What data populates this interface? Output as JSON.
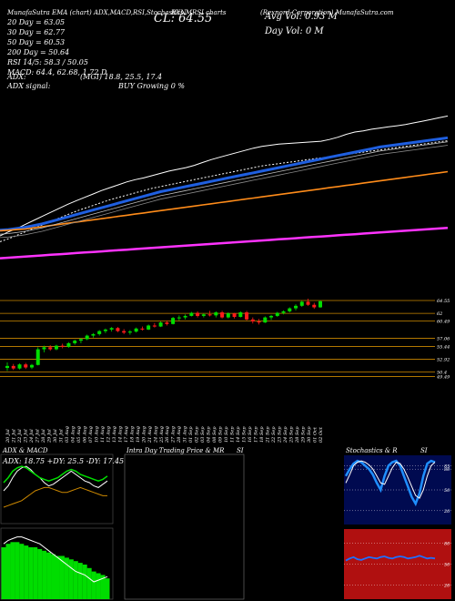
{
  "header": {
    "left_title": "MunafaSutra EMA (chart) ADX,MACD,RSI,Stochastics,MRSI charts",
    "stock_code": "RXN",
    "company": "(Rexnord Corporation) MunafaSutra.com",
    "close_label": "CL: 64.55",
    "avg_vol": "Avg Vol: 0.93 M",
    "day_vol": "Day Vol: 0  M"
  },
  "stats": [
    {
      "key": "20 Day",
      "label": "20  Day = 63.05"
    },
    {
      "key": "30 Day",
      "label": "30  Day = 62.77"
    },
    {
      "key": "50 Day",
      "label": "50  Day = 60.53"
    },
    {
      "key": "200 Day",
      "label": "200  Day = 50.64"
    },
    {
      "key": "RSI",
      "label": "RSI 14/5: 58.3 / 50.05"
    },
    {
      "key": "MACD",
      "label": "MACD: 64.4, 62.68, 1.72  D"
    }
  ],
  "adx_line": {
    "left": "ADX:",
    "mid": "(MGI) 18.8, 25.5, 17.4"
  },
  "adx_signal": {
    "left": "ADX  signal:",
    "mid": "BUY Growing 0 %"
  },
  "panels": {
    "adx_title": "ADX  & MACD",
    "adx_readout": "ADX: 18.75  +DY: 25.5  -DY: 17.45",
    "intraday_title": "Intra  Day Trading Price  & MR",
    "intraday_title2": "SI",
    "stoch_title": "Stochastics & R",
    "stoch_title2": "SI"
  },
  "colors": {
    "background": "#000000",
    "up_candle": "#00dd00",
    "down_candle": "#ff1a1a",
    "ema20": "#ffffff",
    "ema50": "#1f5fe0",
    "ema200": "#ff8c1a",
    "ema_long": "#ff33ff",
    "grid": "#cc8800",
    "stoch_bg": "#000a50",
    "rsi_bg": "#b01010"
  },
  "chart_data": [
    {
      "type": "line",
      "name": "Price & EMA",
      "x": [
        "20 Jul",
        "21 Jul",
        "22 Jul",
        "23 Jul",
        "24 Jul",
        "27 Jul",
        "28 Jul",
        "29 Jul",
        "30 Jul",
        "31 Jul",
        "03 Aug",
        "04 Aug",
        "05 Aug",
        "06 Aug",
        "07 Aug",
        "10 Aug",
        "11 Aug",
        "12 Aug",
        "13 Aug",
        "14 Aug",
        "17 Aug",
        "18 Aug",
        "19 Aug",
        "20 Aug",
        "21 Aug",
        "24 Aug",
        "25 Aug",
        "26 Aug",
        "27 Aug",
        "28 Aug",
        "31 Aug",
        "01 Sep",
        "02 Sep",
        "03 Sep",
        "04 Sep",
        "08 Sep",
        "09 Sep",
        "10 Sep",
        "11 Sep",
        "14 Sep",
        "15 Sep",
        "16 Sep",
        "17 Sep",
        "18 Sep",
        "21 Sep",
        "22 Sep",
        "23 Sep",
        "24 Sep",
        "25 Sep",
        "28 Sep",
        "29 Sep",
        "30 Sep",
        "01 Oct",
        "02 Oct"
      ],
      "series": [
        {
          "key": "price",
          "values": [
            43.5,
            44.2,
            44.8,
            45.5,
            46.2,
            46.9,
            47.6,
            48.3,
            49.0,
            49.6,
            50.2,
            50.8,
            51.4,
            51.9,
            52.4,
            52.9,
            53.3,
            53.6,
            54.0,
            54.4,
            54.8,
            55.1,
            55.4,
            55.8,
            56.3,
            56.8,
            57.2,
            57.6,
            58.0,
            58.4,
            58.8,
            59.1,
            59.3,
            59.5,
            59.6,
            59.7,
            59.8,
            59.9,
            60.0,
            60.3,
            60.7,
            61.2,
            61.6,
            61.8,
            62.1,
            62.3,
            62.5,
            62.7,
            62.9,
            63.2,
            63.5,
            63.8,
            64.1,
            64.4
          ]
        },
        {
          "key": "ema20",
          "values": [
            42.5,
            43.0,
            43.6,
            44.2,
            44.8,
            45.4,
            46.0,
            46.6,
            47.2,
            47.8,
            48.3,
            48.8,
            49.3,
            49.8,
            50.2,
            50.6,
            51.0,
            51.4,
            51.8,
            52.1,
            52.4,
            52.7,
            53.0,
            53.3,
            53.6,
            53.9,
            54.2,
            54.5,
            54.8,
            55.1,
            55.4,
            55.7,
            55.9,
            56.1,
            56.3,
            56.5,
            56.7,
            56.9,
            57.1,
            57.3,
            57.5,
            57.7,
            57.9,
            58.1,
            58.3,
            58.5,
            58.7,
            58.9,
            59.1,
            59.3,
            59.5,
            59.7,
            59.9,
            60.1
          ]
        },
        {
          "key": "ema50",
          "values": [
            44.5,
            44.6,
            44.8,
            45.0,
            45.3,
            45.6,
            46.0,
            46.4,
            46.8,
            47.2,
            47.6,
            48.0,
            48.4,
            48.8,
            49.2,
            49.6,
            50.0,
            50.4,
            50.8,
            51.2,
            51.5,
            51.8,
            52.1,
            52.4,
            52.7,
            53.0,
            53.3,
            53.6,
            53.9,
            54.2,
            54.5,
            54.8,
            55.1,
            55.4,
            55.7,
            56.0,
            56.3,
            56.6,
            56.9,
            57.2,
            57.5,
            57.8,
            58.1,
            58.4,
            58.7,
            59.0,
            59.2,
            59.4,
            59.6,
            59.8,
            60.0,
            60.2,
            60.4,
            60.6
          ]
        },
        {
          "key": "ema200",
          "values": [
            44.4,
            44.5,
            44.6,
            44.7,
            44.9,
            45.1,
            45.3,
            45.5,
            45.7,
            45.9,
            46.1,
            46.3,
            46.5,
            46.7,
            46.9,
            47.1,
            47.3,
            47.5,
            47.7,
            47.9,
            48.1,
            48.3,
            48.5,
            48.7,
            48.9,
            49.1,
            49.3,
            49.5,
            49.7,
            49.9,
            50.1,
            50.3,
            50.5,
            50.7,
            50.9,
            51.1,
            51.3,
            51.5,
            51.7,
            51.9,
            52.1,
            52.3,
            52.5,
            52.7,
            52.9,
            53.1,
            53.3,
            53.5,
            53.7,
            53.9,
            54.1,
            54.3,
            54.5,
            54.7
          ]
        },
        {
          "key": "ema_long",
          "values": [
            39.6,
            39.7,
            39.8,
            39.9,
            40.0,
            40.1,
            40.2,
            40.3,
            40.4,
            40.5,
            40.6,
            40.7,
            40.8,
            40.9,
            41.0,
            41.1,
            41.2,
            41.3,
            41.4,
            41.5,
            41.6,
            41.7,
            41.8,
            41.9,
            42.0,
            42.1,
            42.2,
            42.3,
            42.4,
            42.5,
            42.6,
            42.7,
            42.8,
            42.9,
            43.0,
            43.1,
            43.2,
            43.3,
            43.4,
            43.5,
            43.6,
            43.7,
            43.8,
            43.9,
            44.0,
            44.1,
            44.2,
            44.3,
            44.4,
            44.5,
            44.6,
            44.7,
            44.8,
            44.9
          ]
        }
      ]
    },
    {
      "type": "candlestick",
      "name": "Daily candles",
      "y_ticks": [
        64.55,
        62,
        60.49,
        57.06,
        55.44,
        52.92,
        50.4,
        49.49
      ],
      "candles": [
        {
          "o": 51.2,
          "h": 52.3,
          "l": 50.6,
          "c": 51.6
        },
        {
          "o": 51.6,
          "h": 52.0,
          "l": 50.8,
          "c": 51.1
        },
        {
          "o": 51.1,
          "h": 52.1,
          "l": 50.9,
          "c": 51.9
        },
        {
          "o": 51.9,
          "h": 52.2,
          "l": 51.0,
          "c": 51.3
        },
        {
          "o": 51.3,
          "h": 52.0,
          "l": 51.0,
          "c": 51.8
        },
        {
          "o": 51.8,
          "h": 55.3,
          "l": 51.7,
          "c": 54.9
        },
        {
          "o": 54.9,
          "h": 55.6,
          "l": 54.3,
          "c": 55.3
        },
        {
          "o": 55.3,
          "h": 55.7,
          "l": 54.6,
          "c": 54.9
        },
        {
          "o": 54.9,
          "h": 55.8,
          "l": 54.7,
          "c": 55.6
        },
        {
          "o": 55.6,
          "h": 56.0,
          "l": 55.1,
          "c": 55.4
        },
        {
          "o": 55.4,
          "h": 56.3,
          "l": 55.2,
          "c": 56.1
        },
        {
          "o": 56.1,
          "h": 56.8,
          "l": 55.8,
          "c": 56.6
        },
        {
          "o": 56.6,
          "h": 57.1,
          "l": 56.1,
          "c": 56.9
        },
        {
          "o": 56.9,
          "h": 57.8,
          "l": 56.7,
          "c": 57.6
        },
        {
          "o": 57.6,
          "h": 58.1,
          "l": 57.2,
          "c": 57.9
        },
        {
          "o": 57.9,
          "h": 58.7,
          "l": 57.6,
          "c": 58.5
        },
        {
          "o": 58.5,
          "h": 59.0,
          "l": 58.1,
          "c": 58.8
        },
        {
          "o": 58.8,
          "h": 59.3,
          "l": 58.4,
          "c": 59.1
        },
        {
          "o": 59.1,
          "h": 59.3,
          "l": 58.3,
          "c": 58.5
        },
        {
          "o": 58.5,
          "h": 58.9,
          "l": 57.9,
          "c": 58.2
        },
        {
          "o": 58.2,
          "h": 58.7,
          "l": 57.8,
          "c": 58.4
        },
        {
          "o": 58.4,
          "h": 59.2,
          "l": 58.2,
          "c": 59.0
        },
        {
          "o": 59.0,
          "h": 59.4,
          "l": 58.6,
          "c": 58.8
        },
        {
          "o": 58.8,
          "h": 59.8,
          "l": 58.7,
          "c": 59.6
        },
        {
          "o": 59.6,
          "h": 60.1,
          "l": 59.2,
          "c": 59.4
        },
        {
          "o": 59.4,
          "h": 60.4,
          "l": 59.3,
          "c": 60.2
        },
        {
          "o": 60.2,
          "h": 60.6,
          "l": 59.6,
          "c": 59.9
        },
        {
          "o": 59.9,
          "h": 61.3,
          "l": 59.8,
          "c": 61.1
        },
        {
          "o": 61.1,
          "h": 61.6,
          "l": 60.6,
          "c": 61.2
        },
        {
          "o": 61.2,
          "h": 61.8,
          "l": 60.8,
          "c": 61.5
        },
        {
          "o": 61.5,
          "h": 62.3,
          "l": 61.4,
          "c": 62.1
        },
        {
          "o": 62.1,
          "h": 62.4,
          "l": 61.2,
          "c": 61.5
        },
        {
          "o": 61.5,
          "h": 62.0,
          "l": 61.2,
          "c": 61.8
        },
        {
          "o": 61.8,
          "h": 62.5,
          "l": 61.4,
          "c": 61.6
        },
        {
          "o": 61.6,
          "h": 62.4,
          "l": 61.2,
          "c": 62.2
        },
        {
          "o": 62.2,
          "h": 62.5,
          "l": 61.0,
          "c": 61.2
        },
        {
          "o": 61.2,
          "h": 62.2,
          "l": 61.0,
          "c": 62.0
        },
        {
          "o": 62.0,
          "h": 62.1,
          "l": 61.0,
          "c": 61.3
        },
        {
          "o": 61.3,
          "h": 62.4,
          "l": 61.2,
          "c": 62.2
        },
        {
          "o": 62.2,
          "h": 62.5,
          "l": 60.6,
          "c": 60.8
        },
        {
          "o": 60.8,
          "h": 61.2,
          "l": 60.0,
          "c": 60.4
        },
        {
          "o": 60.4,
          "h": 60.9,
          "l": 59.8,
          "c": 60.2
        },
        {
          "o": 60.2,
          "h": 61.4,
          "l": 60.1,
          "c": 61.2
        },
        {
          "o": 61.2,
          "h": 61.7,
          "l": 60.7,
          "c": 61.5
        },
        {
          "o": 61.5,
          "h": 62.3,
          "l": 61.3,
          "c": 62.1
        },
        {
          "o": 62.1,
          "h": 62.6,
          "l": 61.8,
          "c": 62.4
        },
        {
          "o": 62.4,
          "h": 63.2,
          "l": 62.2,
          "c": 63.0
        },
        {
          "o": 63.0,
          "h": 63.8,
          "l": 62.6,
          "c": 63.5
        },
        {
          "o": 63.5,
          "h": 64.5,
          "l": 63.3,
          "c": 64.3
        },
        {
          "o": 64.3,
          "h": 64.9,
          "l": 63.5,
          "c": 63.7
        },
        {
          "o": 63.7,
          "h": 64.1,
          "l": 62.9,
          "c": 63.2
        },
        {
          "o": 63.2,
          "h": 64.6,
          "l": 63.1,
          "c": 64.4
        }
      ]
    },
    {
      "type": "line",
      "name": "ADX & MACD",
      "series": [
        {
          "key": "adx_white",
          "values": [
            30,
            33,
            38,
            42,
            44,
            45,
            43,
            40,
            38,
            35,
            33,
            34,
            36,
            38,
            40,
            42,
            40,
            38,
            36,
            35,
            33,
            32,
            34,
            36
          ]
        },
        {
          "key": "plus_di",
          "values": [
            35,
            38,
            42,
            44,
            45,
            44,
            42,
            40,
            38,
            37,
            36,
            37,
            38,
            40,
            42,
            43,
            42,
            40,
            39,
            38,
            37,
            36,
            37,
            39
          ]
        },
        {
          "key": "minus_di",
          "values": [
            20,
            21,
            22,
            23,
            24,
            26,
            28,
            30,
            31,
            32,
            32,
            31,
            30,
            29,
            29,
            30,
            31,
            32,
            31,
            30,
            29,
            28,
            27,
            27
          ]
        },
        {
          "key": "macd_hist",
          "values": [
            60,
            62,
            63,
            63,
            62,
            61,
            60,
            60,
            59,
            58,
            57,
            56,
            55,
            55,
            54,
            53,
            52,
            51,
            50,
            48,
            46,
            45,
            44,
            42
          ]
        },
        {
          "key": "macd",
          "values": [
            62,
            64,
            65,
            66,
            66,
            65,
            64,
            63,
            62,
            60,
            58,
            56,
            54,
            52,
            50,
            48,
            46,
            45,
            44,
            42,
            40,
            41,
            42,
            43
          ]
        }
      ]
    },
    {
      "type": "line",
      "name": "Stochastics & RSI",
      "y_ticks_stoch": [
        85,
        80,
        50,
        20
      ],
      "y_ticks_rsi": [
        80,
        50,
        20
      ],
      "series": [
        {
          "key": "stoch_k",
          "values": [
            70,
            80,
            88,
            92,
            90,
            85,
            80,
            72,
            60,
            50,
            70,
            85,
            90,
            92,
            85,
            70,
            55,
            40,
            30,
            45,
            70,
            88,
            92,
            90
          ]
        },
        {
          "key": "stoch_d",
          "values": [
            60,
            72,
            85,
            90,
            92,
            90,
            86,
            80,
            70,
            60,
            58,
            70,
            82,
            90,
            88,
            80,
            68,
            55,
            42,
            38,
            50,
            70,
            85,
            90
          ]
        },
        {
          "key": "rsi",
          "values": [
            55,
            58,
            60,
            57,
            56,
            58,
            60,
            59,
            58,
            60,
            61,
            59,
            58,
            60,
            61,
            60,
            58,
            59,
            60,
            62,
            60,
            58,
            59,
            58
          ]
        }
      ]
    }
  ]
}
